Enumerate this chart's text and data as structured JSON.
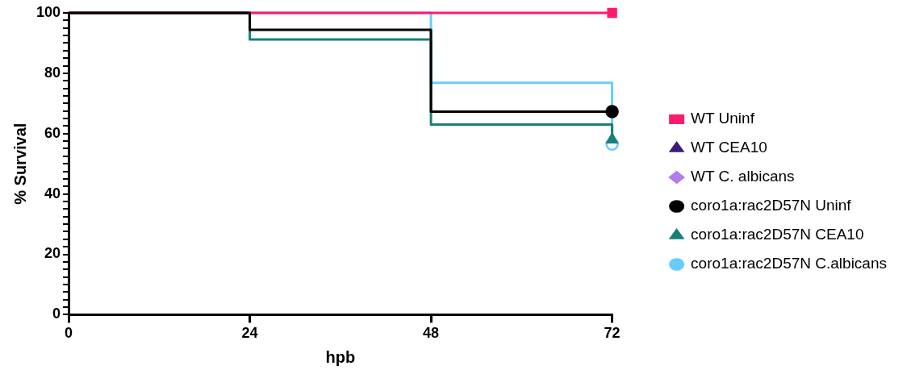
{
  "chart_data": {
    "type": "step",
    "xlabel": "hpb",
    "ylabel": "% Survival",
    "x": [
      0,
      24,
      48,
      72
    ],
    "xlim": [
      0,
      72
    ],
    "xticks": [
      0,
      24,
      48,
      72
    ],
    "ylim": [
      0,
      100
    ],
    "yticks": [
      0,
      {
        "value": 2.5,
        "label": null
      },
      {
        "value": 5,
        "label": null
      },
      {
        "value": 7.5,
        "label": null
      },
      {
        "value": 10,
        "label": null
      },
      {
        "value": 12.5,
        "label": null
      },
      {
        "value": 15,
        "label": null
      },
      {
        "value": 17.5,
        "label": null
      },
      20,
      {
        "value": 22.5,
        "label": null
      },
      {
        "value": 25,
        "label": null
      },
      {
        "value": 27.5,
        "label": null
      },
      {
        "value": 30,
        "label": null
      },
      {
        "value": 32.5,
        "label": null
      },
      {
        "value": 35,
        "label": null
      },
      {
        "value": 37.5,
        "label": null
      },
      40,
      {
        "value": 42.5,
        "label": null
      },
      {
        "value": 45,
        "label": null
      },
      {
        "value": 47.5,
        "label": null
      },
      {
        "value": 50,
        "label": null
      },
      {
        "value": 52.5,
        "label": null
      },
      {
        "value": 55,
        "label": null
      },
      {
        "value": 57.5,
        "label": null
      },
      60,
      {
        "value": 62.5,
        "label": null
      },
      {
        "value": 65,
        "label": null
      },
      {
        "value": 67.5,
        "label": null
      },
      {
        "value": 70,
        "label": null
      },
      {
        "value": 72.5,
        "label": null
      },
      {
        "value": 75,
        "label": null
      },
      {
        "value": 77.5,
        "label": null
      },
      80,
      {
        "value": 82.5,
        "label": null
      },
      {
        "value": 85,
        "label": null
      },
      {
        "value": 87.5,
        "label": null
      },
      {
        "value": 90,
        "label": null
      },
      {
        "value": 92.5,
        "label": null
      },
      {
        "value": 95,
        "label": null
      },
      {
        "value": 97.5,
        "label": null
      },
      100
    ],
    "grid": false,
    "legend": "right",
    "series": [
      {
        "name": "WT Uninf",
        "color": "#ff1a6e",
        "values": [
          100,
          100,
          100,
          100
        ]
      },
      {
        "name": "WT CEA10",
        "color": "#3d1a78",
        "values": [
          null,
          null,
          null,
          null
        ]
      },
      {
        "name": "WT C. albicans",
        "color": "#b07cf0",
        "values": [
          null,
          null,
          null,
          null
        ]
      },
      {
        "name": "coro1a:rac2D57N Uninf",
        "color": "#000000",
        "values": [
          100,
          94.4,
          67.3,
          67.3
        ]
      },
      {
        "name": "coro1a:rac2D57N CEA10",
        "color": "#1a7f7a",
        "values": [
          100,
          91.2,
          63,
          58
        ]
      },
      {
        "name": "coro1a:rac2D57N C.albicans",
        "color": "#66ccff",
        "values": [
          100,
          100,
          76.8,
          56.5
        ]
      }
    ]
  }
}
